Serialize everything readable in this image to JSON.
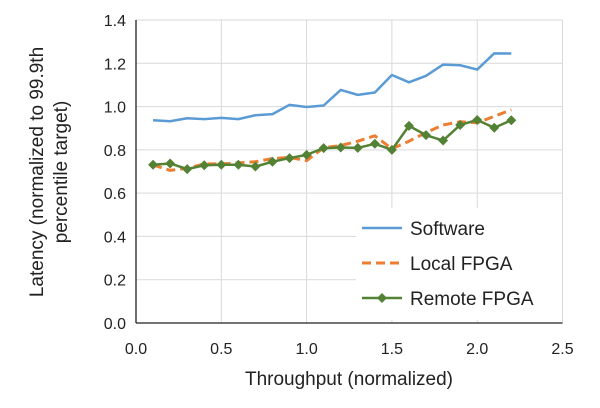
{
  "chart_data": {
    "type": "line",
    "title": "",
    "xlabel": "Throughput (normalized)",
    "ylabel_lines": [
      "Latency (normalized to 99.9th",
      "percentile target)"
    ],
    "xlim": [
      0,
      2.5
    ],
    "ylim": [
      0,
      1.4
    ],
    "xticks": [
      "0.0",
      "0.5",
      "1.0",
      "1.5",
      "2.0",
      "2.5"
    ],
    "yticks": [
      "0.0",
      "0.2",
      "0.4",
      "0.6",
      "0.8",
      "1.0",
      "1.2",
      "1.4"
    ],
    "grid": true,
    "legend_position": "bottom-right",
    "x": [
      0.1,
      0.2,
      0.3,
      0.4,
      0.5,
      0.6,
      0.7,
      0.8,
      0.9,
      1.0,
      1.1,
      1.2,
      1.3,
      1.4,
      1.5,
      1.6,
      1.7,
      1.8,
      1.9,
      2.0,
      2.1,
      2.2
    ],
    "series": [
      {
        "name": "Software",
        "color": "#5b9bd5",
        "style": "solid",
        "values": [
          0.937,
          0.932,
          0.946,
          0.942,
          0.948,
          0.942,
          0.96,
          0.965,
          1.008,
          0.998,
          1.005,
          1.077,
          1.054,
          1.065,
          1.146,
          1.112,
          1.142,
          1.194,
          1.191,
          1.171,
          1.246,
          1.245
        ]
      },
      {
        "name": "Local FPGA",
        "color": "#ed7d31",
        "style": "dashed",
        "values": [
          0.73,
          0.705,
          0.715,
          0.735,
          0.735,
          0.74,
          0.745,
          0.76,
          0.765,
          0.75,
          0.81,
          0.82,
          0.84,
          0.865,
          0.805,
          0.84,
          0.88,
          0.915,
          0.93,
          0.925,
          0.955,
          0.985
        ]
      },
      {
        "name": "Remote FPGA",
        "color": "#548235",
        "style": "solid-diamond",
        "values": [
          0.731,
          0.737,
          0.711,
          0.729,
          0.731,
          0.731,
          0.723,
          0.745,
          0.762,
          0.777,
          0.808,
          0.811,
          0.809,
          0.828,
          0.8,
          0.911,
          0.868,
          0.843,
          0.915,
          0.938,
          0.902,
          0.937
        ]
      }
    ]
  }
}
